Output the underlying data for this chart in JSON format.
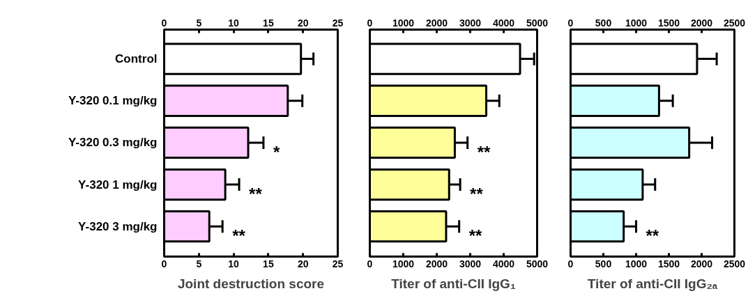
{
  "chart_data": [
    {
      "type": "bar",
      "orientation": "horizontal",
      "xlabel": "Joint destruction score",
      "categories": [
        "Control",
        "Y-320 0.1 mg/kg",
        "Y-320 0.3 mg/kg",
        "Y-320 1 mg/kg",
        "Y-320 3 mg/kg"
      ],
      "values": [
        19.7,
        17.8,
        12.1,
        8.8,
        6.5
      ],
      "errors": [
        1.8,
        2.1,
        2.2,
        2.0,
        1.9
      ],
      "colors": [
        "#ffffff",
        "#ffccff",
        "#ffccff",
        "#ffccff",
        "#ffccff"
      ],
      "xlim": [
        0,
        25
      ],
      "xticks": [
        0,
        5,
        10,
        15,
        20,
        25
      ],
      "x2lim": [
        0,
        25
      ],
      "x2ticks": [
        0,
        5,
        10,
        15,
        20,
        25
      ],
      "annotations": [
        {
          "text": "*",
          "x": 12.1,
          "y": "Y-320 0.3 mg/kg"
        },
        {
          "text": "**",
          "x": 8.8,
          "y": "Y-320 1 mg/kg"
        },
        {
          "text": "**",
          "x": 6.5,
          "y": "Y-320 3 mg/kg"
        }
      ]
    },
    {
      "type": "bar",
      "orientation": "horizontal",
      "xlabel": "Titer of anti-CII IgG₁",
      "tick_labels": "x",
      "categories": [
        "Control",
        "Y-320 0.1 mg/kg",
        "Y-320 0.3 mg/kg",
        "Y-320 1 mg/kg",
        "Y-320 3 mg/kg"
      ],
      "values": [
        4490,
        3480,
        2540,
        2370,
        2280
      ],
      "errors": [
        420,
        390,
        380,
        330,
        390
      ],
      "colors": [
        "#ffffff",
        "#ffff99",
        "#ffff99",
        "#ffff99",
        "#ffff99"
      ],
      "xlim": [
        0,
        5000
      ],
      "xticks": [
        0,
        1000,
        2000,
        3000,
        4000,
        5000
      ],
      "x2lim": [
        0,
        5000
      ],
      "x2ticks": [
        0,
        1000,
        2000,
        3000,
        4000,
        5000
      ],
      "annotations": [
        {
          "text": "**",
          "x": 2540,
          "y": "Y-320 0.3 mg/kg"
        },
        {
          "text": "**",
          "x": 2370,
          "y": "Y-320 1 mg/kg"
        },
        {
          "text": "**",
          "x": 2280,
          "y": "Y-320 3 mg/kg"
        }
      ]
    },
    {
      "type": "bar",
      "orientation": "horizontal",
      "xlabel": "Titer of anti-CII IgG₂ₐ",
      "tick_labels": "x",
      "categories": [
        "Control",
        "Y-320 0.1 mg/kg",
        "Y-320 0.3 mg/kg",
        "Y-320 1 mg/kg",
        "Y-320 3 mg/kg"
      ],
      "values": [
        1930,
        1350,
        1810,
        1100,
        810
      ],
      "errors": [
        300,
        210,
        350,
        190,
        190
      ],
      "colors": [
        "#ffffff",
        "#ccffff",
        "#ccffff",
        "#ccffff",
        "#ccffff"
      ],
      "xlim": [
        0,
        2500
      ],
      "xticks": [
        0,
        500,
        1000,
        1500,
        2000,
        2500
      ],
      "x2lim": [
        0,
        2500
      ],
      "x2ticks": [
        0,
        500,
        1000,
        1500,
        2000,
        2500
      ],
      "annotations": [
        {
          "text": "**",
          "x": 810,
          "y": "Y-320 3 mg/kg"
        }
      ]
    }
  ]
}
